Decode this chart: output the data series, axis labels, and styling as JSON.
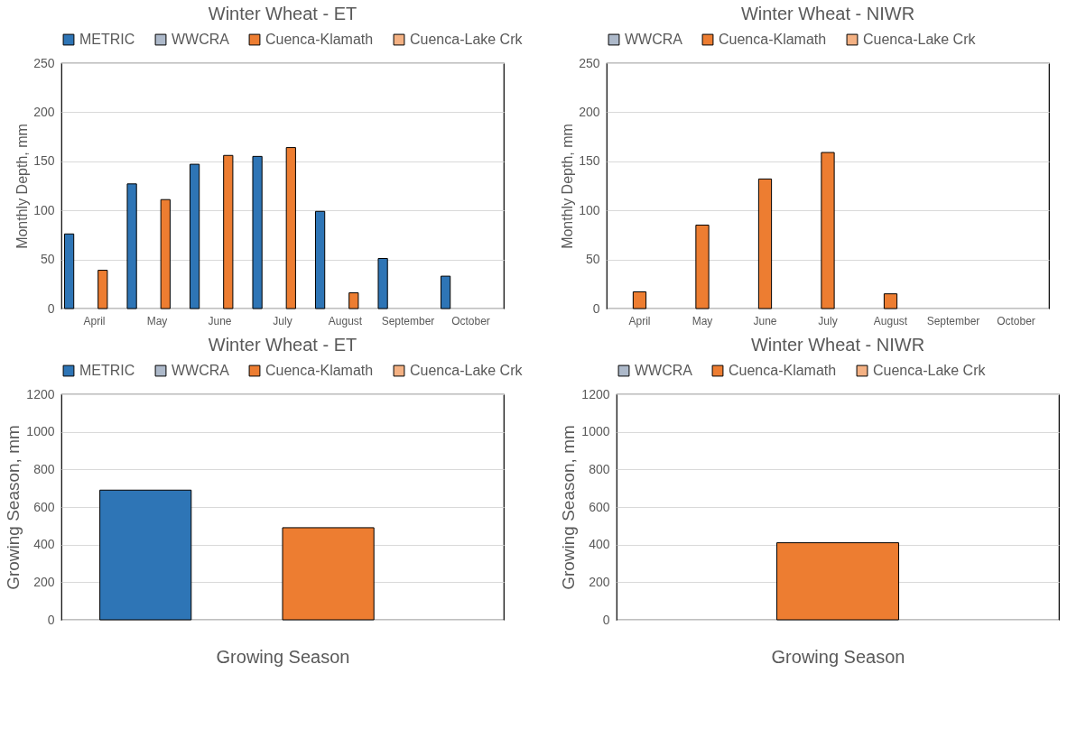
{
  "chart_data": [
    {
      "type": "bar",
      "title": "Winter Wheat - ET",
      "ylabel": "Monthly Depth, mm",
      "categories": [
        "April",
        "May",
        "June",
        "July",
        "August",
        "September",
        "October"
      ],
      "ylim": [
        0,
        250
      ],
      "yticks": [
        0,
        50,
        100,
        150,
        200,
        250
      ],
      "grid": "y",
      "legend": "top",
      "series": [
        {
          "name": "METRIC",
          "color": "#2e75b6",
          "values": [
            76,
            127,
            147,
            155,
            99,
            51,
            33
          ]
        },
        {
          "name": "WWCRA",
          "color": "#adb9ca",
          "values": [
            null,
            null,
            null,
            null,
            null,
            null,
            null
          ]
        },
        {
          "name": "Cuenca-Klamath",
          "color": "#ed7d31",
          "values": [
            39,
            111,
            156,
            164,
            16,
            null,
            null
          ]
        },
        {
          "name": "Cuenca-Lake Crk",
          "color": "#f4b183",
          "values": [
            null,
            null,
            null,
            null,
            null,
            null,
            null
          ]
        }
      ]
    },
    {
      "type": "bar",
      "title": "Winter Wheat - NIWR",
      "ylabel": "Monthly Depth, mm",
      "categories": [
        "April",
        "May",
        "June",
        "July",
        "August",
        "September",
        "October"
      ],
      "ylim": [
        0,
        250
      ],
      "yticks": [
        0,
        50,
        100,
        150,
        200,
        250
      ],
      "grid": "y",
      "legend": "top",
      "series": [
        {
          "name": "WWCRA",
          "color": "#adb9ca",
          "values": [
            null,
            null,
            null,
            null,
            null,
            null,
            null
          ]
        },
        {
          "name": "Cuenca-Klamath",
          "color": "#ed7d31",
          "values": [
            17,
            85,
            132,
            159,
            15,
            null,
            null
          ]
        },
        {
          "name": "Cuenca-Lake Crk",
          "color": "#f4b183",
          "values": [
            null,
            null,
            null,
            null,
            null,
            null,
            null
          ]
        }
      ]
    },
    {
      "type": "bar",
      "title": "Winter Wheat - ET",
      "ylabel": "Growing Season, mm",
      "xlabel": "Growing Season",
      "categories": [
        null
      ],
      "ylim": [
        0,
        1200
      ],
      "yticks": [
        0,
        200,
        400,
        600,
        800,
        1000,
        1200
      ],
      "grid": "y",
      "legend": "top",
      "series": [
        {
          "name": "METRIC",
          "color": "#2e75b6",
          "values": [
            690
          ]
        },
        {
          "name": "WWCRA",
          "color": "#adb9ca",
          "values": [
            null
          ]
        },
        {
          "name": "Cuenca-Klamath",
          "color": "#ed7d31",
          "values": [
            490
          ]
        },
        {
          "name": "Cuenca-Lake Crk",
          "color": "#f4b183",
          "values": [
            null
          ]
        }
      ]
    },
    {
      "type": "bar",
      "title": "Winter Wheat - NIWR",
      "ylabel": "Growing Season, mm",
      "xlabel": "Growing Season",
      "categories": [
        null
      ],
      "ylim": [
        0,
        1200
      ],
      "yticks": [
        0,
        200,
        400,
        600,
        800,
        1000,
        1200
      ],
      "grid": "y",
      "legend": "top",
      "series": [
        {
          "name": "WWCRA",
          "color": "#adb9ca",
          "values": [
            null
          ]
        },
        {
          "name": "Cuenca-Klamath",
          "color": "#ed7d31",
          "values": [
            410
          ]
        },
        {
          "name": "Cuenca-Lake Crk",
          "color": "#f4b183",
          "values": [
            null
          ]
        }
      ]
    }
  ]
}
